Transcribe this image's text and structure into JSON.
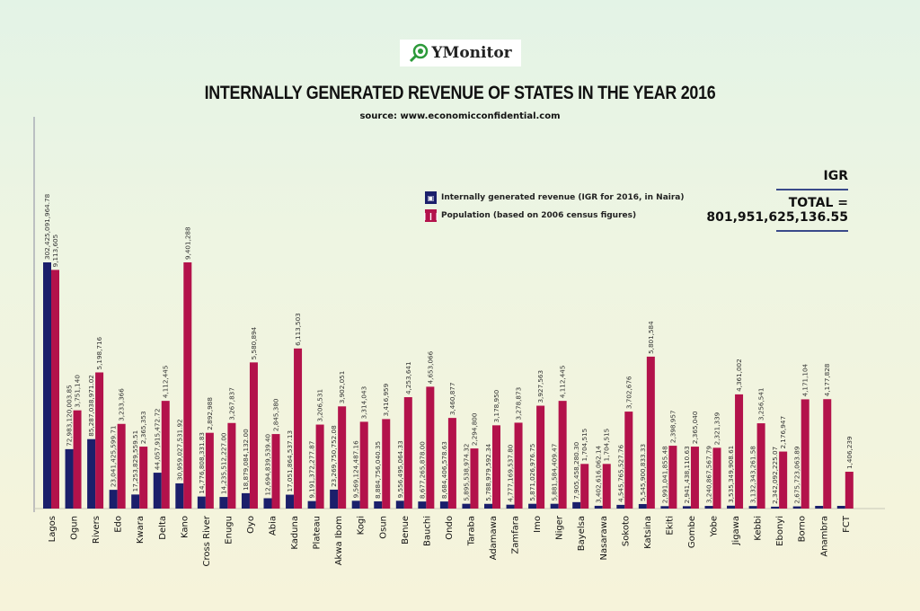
{
  "logo": {
    "text": "YMonitor"
  },
  "colors": {
    "igr": "#1b1f6b",
    "population": "#b3124b",
    "axis": "#8a8aa0"
  },
  "summary": {
    "label": "IGR",
    "total_label": "TOTAL =",
    "total_value": "801,951,625,136.55"
  },
  "chart_data": {
    "type": "bar",
    "title": "INTERNALLY GENERATED REVENUE OF STATES IN THE YEAR 2016",
    "subtitle": "source: www.economicconfidential.com",
    "xlabel": "",
    "ylabel": "",
    "legend_position": "top-center",
    "categories": [
      "Lagos",
      "Ogun",
      "Rivers",
      "Edo",
      "Kwara",
      "Delta",
      "Kano",
      "Cross River",
      "Enugu",
      "Oyo",
      "Abia",
      "Kaduna",
      "Plateau",
      "Akwa Ibom",
      "Kogi",
      "Osun",
      "Benue",
      "Bauchi",
      "Ondo",
      "Taraba",
      "Adamawa",
      "Zamfara",
      "Imo",
      "Niger",
      "Bayelsa",
      "Nasarawa",
      "Sokoto",
      "Katsina",
      "Ekiti",
      "Gombe",
      "Yobe",
      "Jigawa",
      "Kebbi",
      "Ebonyi",
      "Borno",
      "Anambra",
      "FCT"
    ],
    "series": [
      {
        "name": "Internally generated revenue (IGR for 2016, in Naira)",
        "values": [
          302425091964.78,
          72983120003.85,
          85287038971.02,
          23041425599.71,
          17253829559.51,
          44057915472.72,
          30959027531.92,
          14776808331.83,
          14235512227.0,
          18879084132.0,
          12694839539.4,
          17051864537.13,
          9191372277.87,
          23269750752.08,
          9569124487.16,
          8884756040.35,
          9556495064.33,
          8677265878.0,
          8684406578.63,
          5895538974.32,
          5788979592.34,
          4777169537.8,
          5871026976.75,
          5881584409.47,
          7905458280.3,
          3402616062.14,
          4545765527.76,
          5545900833.33,
          2991041855.48,
          2941438110.63,
          3240867567.79,
          3535349908.61,
          3132343261.58,
          2342092225.07,
          2675723063.89,
          null,
          null
        ],
        "labels": [
          "302,425,091,964.78",
          "72,983,120,003.85",
          "85,287,038,971.02",
          "23,041,425,599.71",
          "17,253,829,559.51",
          "44,057,915,472.72",
          "30,959,027,531.92",
          "14,776,808,331.83",
          "14,235,512,227.00",
          "18,879,084,132.00",
          "12,694,839,539.40",
          "17,051,864,537.13",
          "9,191,372,277.87",
          "23,269,750,752.08",
          "9,569,124,487.16",
          "8,884,756,040.35",
          "9,556,495,064.33",
          "8,677,265,878.00",
          "8,684,406,578.63",
          "5,895,538,974.32",
          "5,788,979,592.34",
          "4,777,169,537.80",
          "5,871,026,976.75",
          "5,881,584,409.47",
          "7,905,458,280.30",
          "3,402,616,062.14",
          "4,545,765,527.76",
          "5,545,900,833.33",
          "2,991,041,855.48",
          "2,941,438,110.63",
          "3,240,867,567.79",
          "3,535,349,908.61",
          "3,132,343,261.58",
          "2,342,092,225.07",
          "2,675,723,063.89",
          "",
          ""
        ]
      },
      {
        "name": "Population (based on 2006 census figures)",
        "values": [
          9113605,
          3751140,
          5198716,
          3233366,
          2365353,
          4112445,
          9401288,
          2892988,
          3267837,
          5580894,
          2845380,
          6113503,
          3206531,
          3902051,
          3314043,
          3416959,
          4253641,
          4653066,
          3460877,
          2294800,
          3178950,
          3278873,
          3927563,
          4112445,
          1704515,
          1704515,
          3702676,
          5801584,
          2398957,
          2365040,
          2321339,
          4361002,
          3256541,
          2176947,
          4171104,
          4177828,
          1406239
        ],
        "labels": [
          "9,113,605",
          "3,751,140",
          "5,198,716",
          "3,233,366",
          "2,365,353",
          "4,112,445",
          "9,401,288",
          "2,892,988",
          "3,267,837",
          "5,580,894",
          "2,845,380",
          "6,113,503",
          "3,206,531",
          "3,902,051",
          "3,314,043",
          "3,416,959",
          "4,253,641",
          "4,653,066",
          "3,460,877",
          "2,294,800",
          "3,178,950",
          "3,278,873",
          "3,927,563",
          "4,112,445",
          "1,704,515",
          "1,704,515",
          "3,702,676",
          "5,801,584",
          "2,398,957",
          "2,365,040",
          "2,321,339",
          "4,361,002",
          "3,256,541",
          "2,176,947",
          "4,171,104",
          "4,177,828",
          "1,406,239"
        ]
      }
    ],
    "igr_ylim": [
      0,
      302425091964.78
    ],
    "population_ylim": [
      0,
      9401288
    ],
    "grid": false
  }
}
